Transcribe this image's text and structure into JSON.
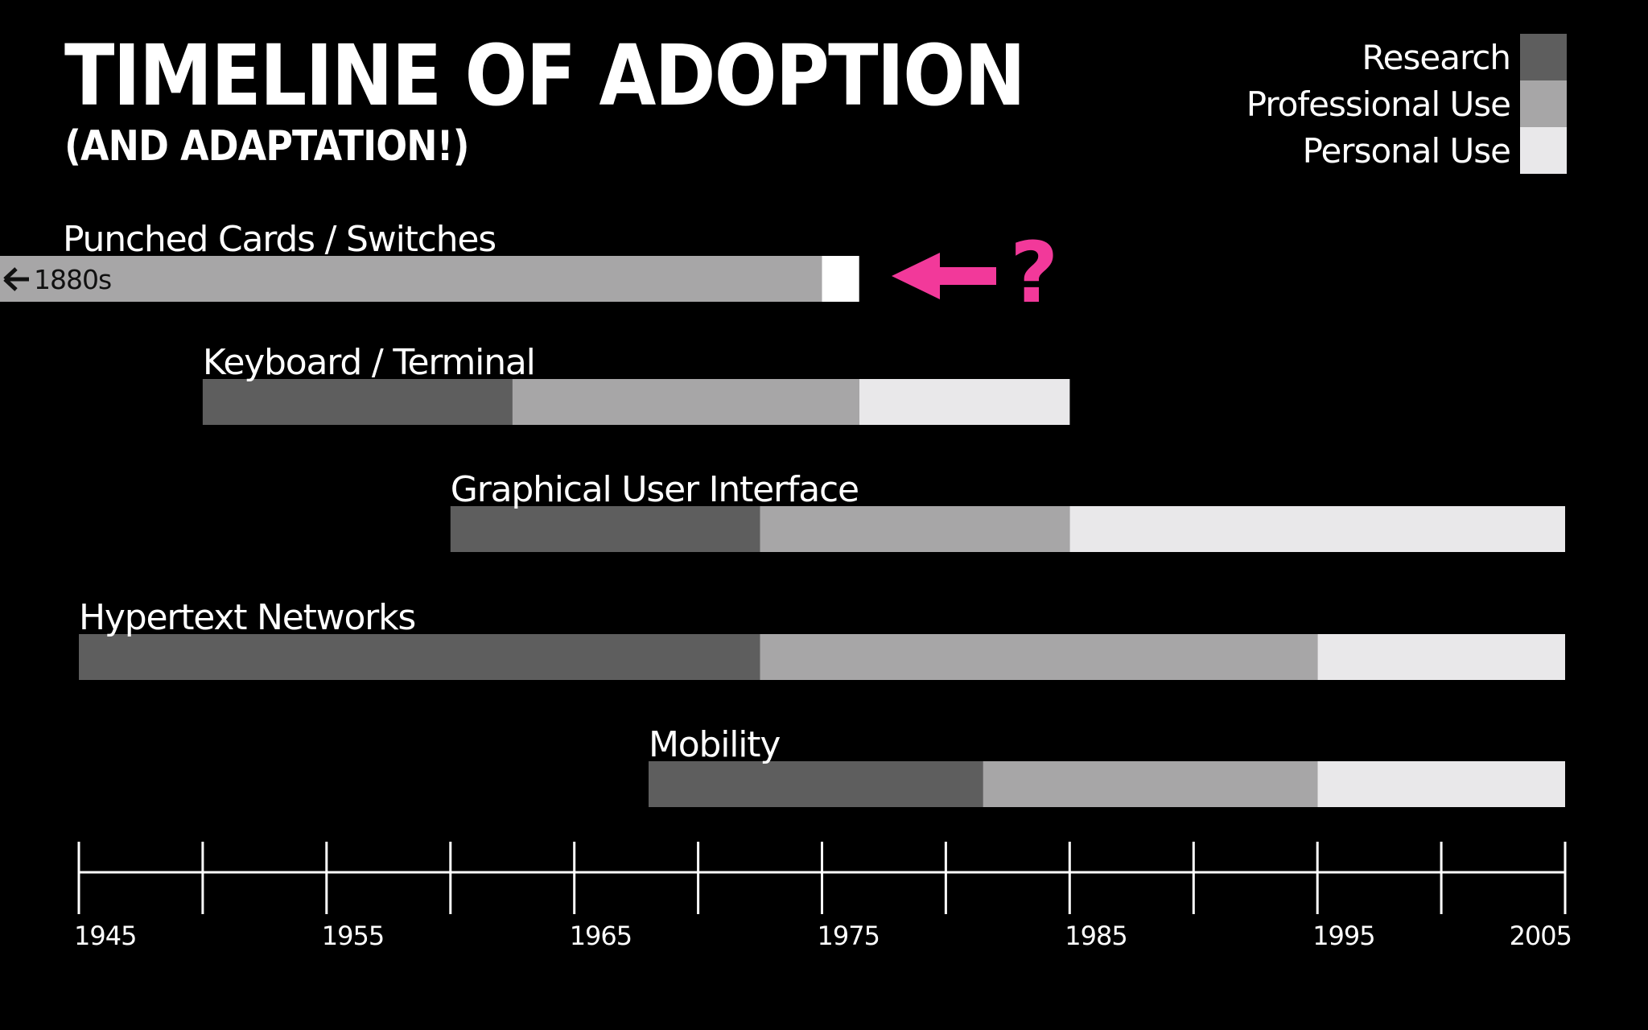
{
  "title": "TIMELINE OF ADOPTION",
  "subtitle": "(AND ADAPTATION!)",
  "legend": [
    {
      "label": "Research",
      "color": "#5e5e5e"
    },
    {
      "label": "Professional Use",
      "color": "#a7a6a7"
    },
    {
      "label": "Personal Use",
      "color": "#e9e8ea"
    }
  ],
  "annotation": {
    "symbol": "?",
    "icon": "arrow-left-icon",
    "color": "#f2399a"
  },
  "chart_data": {
    "type": "bar",
    "orientation": "horizontal",
    "stacked": true,
    "title": "TIMELINE OF ADOPTION",
    "subtitle": "(AND ADAPTATION!)",
    "xlim": [
      1945,
      2005
    ],
    "x_ticks": [
      1945,
      1950,
      1955,
      1960,
      1965,
      1970,
      1975,
      1980,
      1985,
      1990,
      1995,
      2000,
      2005
    ],
    "x_tick_labels": [
      {
        "value": 1945,
        "label": "1945"
      },
      {
        "value": 1955,
        "label": "1955"
      },
      {
        "value": 1965,
        "label": "1965"
      },
      {
        "value": 1975,
        "label": "1975"
      },
      {
        "value": 1985,
        "label": "1985"
      },
      {
        "value": 1995,
        "label": "1995"
      },
      {
        "value": 2005,
        "label": "2005"
      }
    ],
    "legend_position": "top-right",
    "series": [
      {
        "name": "Research",
        "color": "#5e5e5e"
      },
      {
        "name": "Professional Use",
        "color": "#a7a6a7"
      },
      {
        "name": "Personal Use",
        "color": "#e9e8ea"
      }
    ],
    "rows": [
      {
        "label": "Punched Cards / Switches",
        "origin_label": "1880s",
        "segments": [
          {
            "series": "Professional Use",
            "start": 1880,
            "end": 1975
          },
          {
            "series": "Personal Use",
            "start": 1975,
            "end": 1976.5
          }
        ]
      },
      {
        "label": "Keyboard / Terminal",
        "segments": [
          {
            "series": "Research",
            "start": 1950,
            "end": 1962.5
          },
          {
            "series": "Professional Use",
            "start": 1962.5,
            "end": 1976.5
          },
          {
            "series": "Personal Use",
            "start": 1976.5,
            "end": 1985
          }
        ]
      },
      {
        "label": "Graphical User Interface",
        "segments": [
          {
            "series": "Research",
            "start": 1960,
            "end": 1972.5
          },
          {
            "series": "Professional Use",
            "start": 1972.5,
            "end": 1985
          },
          {
            "series": "Personal Use",
            "start": 1985,
            "end": 2005
          }
        ]
      },
      {
        "label": "Hypertext Networks",
        "segments": [
          {
            "series": "Research",
            "start": 1945,
            "end": 1972.5
          },
          {
            "series": "Professional Use",
            "start": 1972.5,
            "end": 1995
          },
          {
            "series": "Personal Use",
            "start": 1995,
            "end": 2005
          }
        ]
      },
      {
        "label": "Mobility",
        "segments": [
          {
            "series": "Research",
            "start": 1968,
            "end": 1981.5
          },
          {
            "series": "Professional Use",
            "start": 1981.5,
            "end": 1995
          },
          {
            "series": "Personal Use",
            "start": 1995,
            "end": 2005
          }
        ]
      }
    ]
  }
}
